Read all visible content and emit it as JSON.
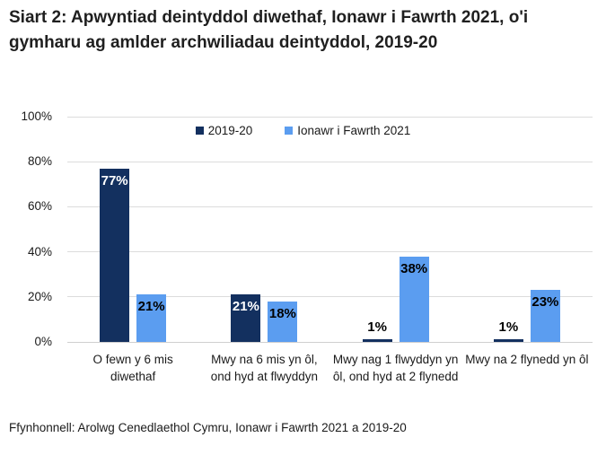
{
  "title": "Siart 2: Apwyntiad deintyddol diwethaf, Ionawr i Fawrth 2021, o'i gymharu ag amlder archwiliadau deintyddol, 2019-20",
  "source": "Ffynhonnell: Arolwg Cenedlaethol Cymru, Ionawr i Fawrth 2021 a 2019-20",
  "colors": {
    "series_dark": "#13305F",
    "series_light": "#5B9DF0",
    "gridline": "#dcdcdc",
    "text": "#1a1a1a"
  },
  "chart_data": {
    "type": "bar",
    "categories": [
      "O fewn y 6 mis diwethaf",
      "Mwy na 6 mis yn ôl, ond hyd at flwyddyn",
      "Mwy nag 1 flwyddyn yn ôl, ond hyd at 2 flynedd",
      "Mwy na 2 flynedd yn ôl"
    ],
    "series": [
      {
        "name": "2019-20",
        "color": "#13305F",
        "label_color": "#ffffff",
        "values": [
          77,
          21,
          1,
          1
        ]
      },
      {
        "name": "Ionawr i Fawrth 2021",
        "color": "#5B9DF0",
        "label_color": "#000000",
        "values": [
          21,
          18,
          38,
          23
        ]
      }
    ],
    "value_labels": [
      [
        "77%",
        "21%",
        "1%",
        "1%"
      ],
      [
        "21%",
        "18%",
        "38%",
        "23%"
      ]
    ],
    "ylim": [
      0,
      100
    ],
    "yticks": [
      0,
      20,
      40,
      60,
      80,
      100
    ],
    "ytick_labels": [
      "0%",
      "20%",
      "40%",
      "60%",
      "80%",
      "100%"
    ],
    "xlabel": "",
    "ylabel": "",
    "grid": true,
    "legend_position": "top-center"
  }
}
